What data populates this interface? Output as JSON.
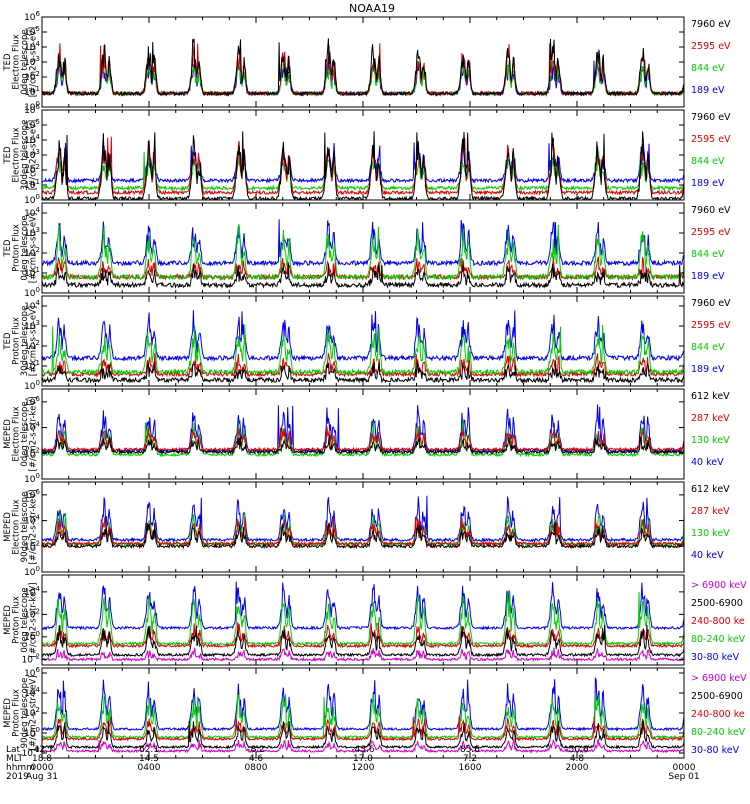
{
  "chart_data": {
    "type": "line",
    "title": "NOAA19",
    "x_axis": {
      "hours": [
        0,
        4,
        8,
        12,
        16,
        20,
        24
      ],
      "rows": [
        {
          "label": "Lat",
          "values": [
            "-42.7",
            "62.1",
            "-8.2",
            "-43.6",
            "85.6",
            "-50.6",
            ""
          ]
        },
        {
          "label": "MLT",
          "values": [
            "18.8",
            "14.5",
            "4.6",
            "17.0",
            "7.2",
            "4.8",
            ""
          ]
        },
        {
          "label": "hhmm",
          "values": [
            "0000",
            "0400",
            "0800",
            "1200",
            "1600",
            "2000",
            "0000"
          ]
        },
        {
          "label": "2019",
          "values": [
            "Aug 31",
            "",
            "",
            "",
            "",
            "",
            "Sep 01"
          ]
        }
      ]
    },
    "panels": [
      {
        "ylabel": [
          "TED",
          "Electron Flux",
          "0deg telescope",
          "[#/cm2-s-str-eV]"
        ],
        "yticks": [
          "10^6",
          "10^5",
          "10^4",
          "10^3",
          "10^2",
          "10^1",
          "10^0"
        ],
        "ymin": 0,
        "ymax": 6,
        "legend": [
          {
            "text": "7960 eV",
            "color": "#000000"
          },
          {
            "text": "2595 eV",
            "color": "#dd0000"
          },
          {
            "text": "844 eV",
            "color": "#00cc00"
          },
          {
            "text": "189 eV",
            "color": "#0000ee"
          }
        ],
        "series": [
          {
            "name": "7960 eV",
            "color": "#000000",
            "low": 0.9,
            "high": 4.3
          },
          {
            "name": "2595 eV",
            "color": "#dd0000",
            "low": 0.9,
            "high": 4.0
          },
          {
            "name": "844 eV",
            "color": "#00cc00",
            "low": 0.9,
            "high": 3.2
          },
          {
            "name": "189 eV",
            "color": "#0000ee",
            "low": 0.9,
            "high": 3.0
          }
        ],
        "order": [
          3,
          2,
          1,
          0
        ]
      },
      {
        "ylabel": [
          "TED",
          "Electron Flux",
          "30deg telescope",
          "[#/cm2-s-str-eV]"
        ],
        "yticks": [
          "10^6",
          "10^5",
          "10^4",
          "10^3",
          "10^2",
          "10^1",
          "10^0"
        ],
        "ymin": 0,
        "ymax": 6,
        "legend": [
          {
            "text": "7960 eV",
            "color": "#000000"
          },
          {
            "text": "2595 eV",
            "color": "#dd0000"
          },
          {
            "text": "844 eV",
            "color": "#00cc00"
          },
          {
            "text": "189 eV",
            "color": "#0000ee"
          }
        ],
        "series": [
          {
            "name": "7960 eV",
            "color": "#000000",
            "low": 0.1,
            "high": 4.3
          },
          {
            "name": "2595 eV",
            "color": "#dd0000",
            "low": 0.5,
            "high": 4.0
          },
          {
            "name": "844 eV",
            "color": "#00cc00",
            "low": 0.8,
            "high": 3.0
          },
          {
            "name": "189 eV",
            "color": "#0000ee",
            "low": 1.3,
            "high": 3.6
          }
        ],
        "order": [
          3,
          2,
          1,
          0
        ]
      },
      {
        "ylabel": [
          "TED",
          "Proton Flux",
          "0deg telescope",
          "[#/cm2-s-str-eV]"
        ],
        "yticks": [
          "10^4",
          "10^3",
          "10^2",
          "10^1",
          "10^0"
        ],
        "ymin": 0,
        "ymax": 4.5,
        "legend": [
          {
            "text": "7960 eV",
            "color": "#000000"
          },
          {
            "text": "2595 eV",
            "color": "#dd0000"
          },
          {
            "text": "844 eV",
            "color": "#00cc00"
          },
          {
            "text": "189 eV",
            "color": "#0000ee"
          }
        ],
        "series": [
          {
            "name": "7960 eV",
            "color": "#000000",
            "low": 0.4,
            "high": 1.2
          },
          {
            "name": "2595 eV",
            "color": "#dd0000",
            "low": 0.8,
            "high": 1.6
          },
          {
            "name": "844 eV",
            "color": "#00cc00",
            "low": 0.8,
            "high": 3.2
          },
          {
            "name": "189 eV",
            "color": "#0000ee",
            "low": 1.5,
            "high": 3.4
          }
        ],
        "order": [
          3,
          1,
          2,
          0
        ]
      },
      {
        "ylabel": [
          "TED",
          "Proton Flux",
          "30deg telescope",
          "[#/cm2-s-str-eV]"
        ],
        "yticks": [
          "10^4",
          "10^3",
          "10^2",
          "10^1",
          "10^0"
        ],
        "ymin": 0,
        "ymax": 4.5,
        "legend": [
          {
            "text": "7960 eV",
            "color": "#000000"
          },
          {
            "text": "2595 eV",
            "color": "#dd0000"
          },
          {
            "text": "844 eV",
            "color": "#00cc00"
          },
          {
            "text": "189 eV",
            "color": "#0000ee"
          }
        ],
        "series": [
          {
            "name": "7960 eV",
            "color": "#000000",
            "low": 0.3,
            "high": 1.0
          },
          {
            "name": "2595 eV",
            "color": "#dd0000",
            "low": 0.6,
            "high": 1.4
          },
          {
            "name": "844 eV",
            "color": "#00cc00",
            "low": 0.7,
            "high": 2.8
          },
          {
            "name": "189 eV",
            "color": "#0000ee",
            "low": 1.4,
            "high": 3.5
          }
        ],
        "order": [
          3,
          1,
          2,
          0
        ]
      },
      {
        "ylabel": [
          "MEPED",
          "Electron Flux",
          "0deg telescope",
          "[#/cm2-s-str-keV]"
        ],
        "yticks": [
          "10^6",
          "10^4",
          "10^2",
          "10^0"
        ],
        "ymin": 0,
        "ymax": 7,
        "legend": [
          {
            "text": "612 keV",
            "color": "#000000"
          },
          {
            "text": "287 keV",
            "color": "#dd0000"
          },
          {
            "text": "130 keV",
            "color": "#00cc00"
          },
          {
            "text": "40 keV",
            "color": "#0000ee"
          }
        ],
        "series": [
          {
            "name": "612 keV",
            "color": "#000000",
            "low": 2.1,
            "high": 3.0
          },
          {
            "name": "287 keV",
            "color": "#dd0000",
            "low": 2.3,
            "high": 3.8
          },
          {
            "name": "130 keV",
            "color": "#00cc00",
            "low": 1.9,
            "high": 4.2
          },
          {
            "name": "40 keV",
            "color": "#0000ee",
            "low": 2.2,
            "high": 5.5
          }
        ],
        "order": [
          3,
          2,
          1,
          0
        ]
      },
      {
        "ylabel": [
          "MEPED",
          "Electron Flux",
          "90deg telescope",
          "[#/cm2-s-str-keV]"
        ],
        "yticks": [
          "10^6",
          "10^4",
          "10^2",
          "10^0"
        ],
        "ymin": 0,
        "ymax": 7,
        "legend": [
          {
            "text": "612 keV",
            "color": "#000000"
          },
          {
            "text": "287 keV",
            "color": "#dd0000"
          },
          {
            "text": "130 keV",
            "color": "#00cc00"
          },
          {
            "text": "40 keV",
            "color": "#0000ee"
          }
        ],
        "series": [
          {
            "name": "612 keV",
            "color": "#000000",
            "low": 2.0,
            "high": 3.6
          },
          {
            "name": "287 keV",
            "color": "#dd0000",
            "low": 2.2,
            "high": 4.0
          },
          {
            "name": "130 keV",
            "color": "#00cc00",
            "low": 2.2,
            "high": 4.4
          },
          {
            "name": "40 keV",
            "color": "#0000ee",
            "low": 2.5,
            "high": 5.7
          }
        ],
        "order": [
          3,
          2,
          1,
          0
        ]
      },
      {
        "ylabel": [
          "MEPED",
          "Proton Flux",
          "0deg telescope",
          "[#/cm2-s-str-keV]"
        ],
        "yticks": [
          "10^4",
          "10^2",
          "10^0",
          "10^-2"
        ],
        "ymin": -2.5,
        "ymax": 5.5,
        "legend": [
          {
            "text": "> 6900 keV",
            "color": "#cc00cc"
          },
          {
            "text": "2500-6900",
            "color": "#000000"
          },
          {
            "text": "240-800 ke",
            "color": "#dd0000"
          },
          {
            "text": "80-240 keV",
            "color": "#00cc00"
          },
          {
            "text": "30-80 keV",
            "color": "#0000ee"
          }
        ],
        "series": [
          {
            "name": "> 6900 keV",
            "color": "#cc00cc",
            "low": -2.0,
            "high": -1.2
          },
          {
            "name": "2500-6900",
            "color": "#000000",
            "low": -1.6,
            "high": 0.8
          },
          {
            "name": "240-800 ke",
            "color": "#dd0000",
            "low": -0.8,
            "high": 1.0
          },
          {
            "name": "80-240 keV",
            "color": "#00cc00",
            "low": -0.6,
            "high": 3.8
          },
          {
            "name": "30-80 keV",
            "color": "#0000ee",
            "low": 0.8,
            "high": 4.8
          }
        ],
        "order": [
          4,
          3,
          2,
          1,
          0
        ]
      },
      {
        "ylabel": [
          "MEPED",
          "Proton Flux",
          "90deg telescope",
          "[#/cm2-s-str-keV]"
        ],
        "yticks": [
          "10^6",
          "10^4",
          "10^2",
          "10^0",
          "10^-2"
        ],
        "ymin": -2.5,
        "ymax": 6.5,
        "legend": [
          {
            "text": "> 6900 keV",
            "color": "#cc00cc"
          },
          {
            "text": "2500-6900",
            "color": "#000000"
          },
          {
            "text": "240-800 ke",
            "color": "#dd0000"
          },
          {
            "text": "80-240 keV",
            "color": "#00cc00"
          },
          {
            "text": "30-80 keV",
            "color": "#0000ee"
          }
        ],
        "series": [
          {
            "name": "> 6900 keV",
            "color": "#cc00cc",
            "low": -1.8,
            "high": -0.8
          },
          {
            "name": "2500-6900",
            "color": "#000000",
            "low": -1.4,
            "high": 1.0
          },
          {
            "name": "240-800 ke",
            "color": "#dd0000",
            "low": -0.6,
            "high": 1.4
          },
          {
            "name": "80-240 keV",
            "color": "#00cc00",
            "low": -0.4,
            "high": 3.6
          },
          {
            "name": "30-80 keV",
            "color": "#0000ee",
            "low": 0.4,
            "high": 5.2
          }
        ],
        "order": [
          4,
          3,
          2,
          1,
          0
        ]
      }
    ]
  }
}
